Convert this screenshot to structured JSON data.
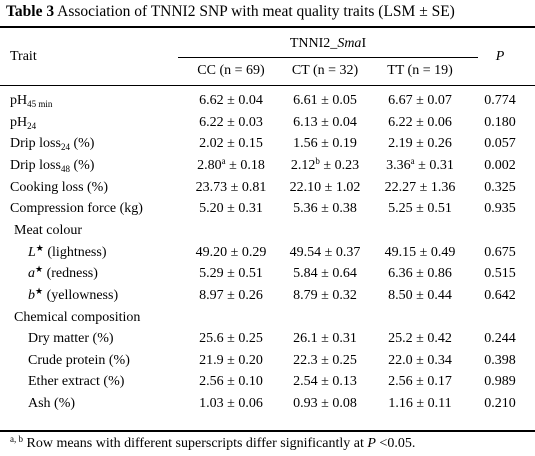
{
  "caption": {
    "label": "Table 3",
    "text": " Association of TNNI2 SNP with meat quality traits (LSM ± SE)"
  },
  "header": {
    "trait": "Trait",
    "gene_prefix": "TNNI2_",
    "gene_italic": "Sma",
    "gene_suffix": "I",
    "p": "P",
    "genotypes": [
      "CC (n = 69)",
      "CT (n = 32)",
      "TT (n = 19)"
    ]
  },
  "rows": [
    {
      "pre": "pH",
      "sub": "45 min",
      "post": "",
      "v": [
        "6.62 ± 0.04",
        "6.61 ± 0.05",
        "6.67 ± 0.07"
      ],
      "p": "0.774"
    },
    {
      "pre": "pH",
      "sub": "24",
      "post": "",
      "v": [
        "6.22 ± 0.03",
        "6.13 ± 0.04",
        "6.22 ± 0.06"
      ],
      "p": "0.180"
    },
    {
      "pre": "Drip loss",
      "sub": "24",
      "post": " (%)",
      "v": [
        "2.02 ± 0.15",
        "1.56 ± 0.19",
        "2.19 ± 0.26"
      ],
      "p": "0.057"
    },
    {
      "pre": "Drip loss",
      "sub": "48",
      "post": " (%)",
      "vsup": [
        [
          "2.80",
          "a",
          " ± 0.18"
        ],
        [
          "2.12",
          "b",
          " ± 0.23"
        ],
        [
          "3.36",
          "a",
          " ± 0.31"
        ]
      ],
      "p": "0.002"
    },
    {
      "pre": "Cooking loss (%)",
      "v": [
        "23.73 ± 0.81",
        "22.10 ± 1.02",
        "22.27 ± 1.36"
      ],
      "p": "0.325"
    },
    {
      "pre": "Compression force (kg)",
      "v": [
        "5.20 ± 0.31",
        "5.36 ± 0.38",
        "5.25 ± 0.51"
      ],
      "p": "0.935"
    }
  ],
  "meat_colour": {
    "label": "Meat colour",
    "rows": [
      {
        "letter": "L",
        "star": "★",
        "desc": " (lightness)",
        "v": [
          "49.20 ± 0.29",
          "49.54 ± 0.37",
          "49.15 ± 0.49"
        ],
        "p": "0.675"
      },
      {
        "letter": "a",
        "star": "★",
        "desc": " (redness)",
        "v": [
          "5.29 ± 0.51",
          "5.84 ± 0.64",
          "6.36 ± 0.86"
        ],
        "p": "0.515"
      },
      {
        "letter": "b",
        "star": "★",
        "desc": " (yellowness)",
        "v": [
          "8.97 ± 0.26",
          "8.79 ± 0.32",
          "8.50 ± 0.44"
        ],
        "p": "0.642"
      }
    ]
  },
  "chemical": {
    "label": "Chemical composition",
    "rows": [
      {
        "label": "Dry matter (%)",
        "v": [
          "25.6 ± 0.25",
          "26.1 ± 0.31",
          "25.2 ± 0.42"
        ],
        "p": "0.244"
      },
      {
        "label": "Crude protein (%)",
        "v": [
          "21.9 ± 0.20",
          "22.3 ± 0.25",
          "22.0 ± 0.34"
        ],
        "p": "0.398"
      },
      {
        "label": "Ether extract (%)",
        "v": [
          "2.56 ± 0.10",
          "2.54 ± 0.13",
          "2.56 ± 0.17"
        ],
        "p": "0.989"
      },
      {
        "label": "Ash (%)",
        "v": [
          "1.03 ± 0.06",
          "0.93 ± 0.08",
          "1.16 ± 0.11"
        ],
        "p": "0.210"
      }
    ]
  },
  "footnote": {
    "sup": "a, b",
    "text": " Row means with different superscripts differ significantly at ",
    "p": "P",
    "rest": " <0.05."
  }
}
